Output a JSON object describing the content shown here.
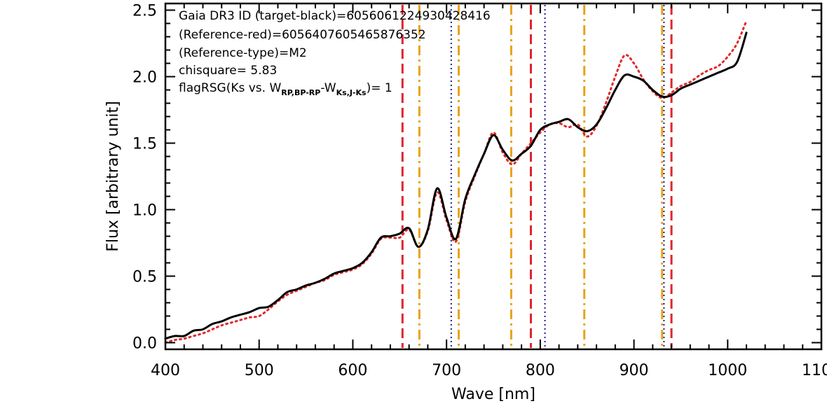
{
  "chart_data": {
    "type": "line",
    "xlabel": "Wave [nm]",
    "ylabel": "Flux [arbitrary unit]",
    "xlim": [
      400,
      1100
    ],
    "ylim": [
      -0.05,
      2.55
    ],
    "x_ticks": [
      400,
      500,
      600,
      700,
      800,
      900,
      1000,
      1100
    ],
    "x_tick_labels": [
      "400",
      "500",
      "600",
      "700",
      "800",
      "900",
      "1000",
      "1100"
    ],
    "y_ticks": [
      0.0,
      0.5,
      1.0,
      1.5,
      2.0,
      2.5
    ],
    "y_tick_labels": [
      "0.0",
      "0.5",
      "1.0",
      "1.5",
      "2.0",
      "2.5"
    ],
    "grid": false,
    "annotations": {
      "line1": "Gaia DR3 ID (target-black)=6056061224930428416",
      "line2": "(Reference-red)=6056407605465876352",
      "line3": "(Reference-type)=M2",
      "line4": "chisquare= 5.83",
      "line5_prefix": "flagRSG(Ks vs. W",
      "line5_sub1": "RP,BP-RP",
      "line5_mid": "-W",
      "line5_sub2": "Ks,J-Ks",
      "line5_suffix": ")= 1"
    },
    "series": [
      {
        "color": "#000000",
        "style": "solid",
        "x": [
          400,
          410,
          420,
          430,
          440,
          450,
          460,
          470,
          480,
          490,
          500,
          510,
          520,
          530,
          540,
          550,
          560,
          570,
          580,
          590,
          600,
          610,
          620,
          630,
          640,
          650,
          660,
          670,
          680,
          690,
          700,
          710,
          720,
          730,
          740,
          750,
          760,
          770,
          780,
          790,
          800,
          810,
          820,
          830,
          840,
          850,
          860,
          870,
          880,
          890,
          900,
          910,
          920,
          930,
          940,
          950,
          960,
          970,
          980,
          990,
          1000,
          1010,
          1020
        ],
        "y": [
          0.03,
          0.05,
          0.05,
          0.09,
          0.1,
          0.14,
          0.16,
          0.19,
          0.21,
          0.23,
          0.26,
          0.27,
          0.32,
          0.38,
          0.4,
          0.43,
          0.45,
          0.48,
          0.52,
          0.54,
          0.56,
          0.6,
          0.68,
          0.79,
          0.8,
          0.82,
          0.86,
          0.72,
          0.85,
          1.16,
          0.94,
          0.78,
          1.08,
          1.26,
          1.42,
          1.56,
          1.45,
          1.37,
          1.42,
          1.48,
          1.6,
          1.64,
          1.66,
          1.68,
          1.62,
          1.59,
          1.64,
          1.76,
          1.9,
          2.01,
          2.0,
          1.97,
          1.9,
          1.85,
          1.86,
          1.91,
          1.94,
          1.97,
          2.0,
          2.03,
          2.06,
          2.11,
          2.33
        ]
      },
      {
        "color": "#e02a2a",
        "style": "dotted",
        "x": [
          400,
          410,
          420,
          430,
          440,
          450,
          460,
          470,
          480,
          490,
          500,
          510,
          520,
          530,
          540,
          550,
          560,
          570,
          580,
          590,
          600,
          610,
          620,
          630,
          640,
          650,
          660,
          670,
          680,
          690,
          700,
          710,
          720,
          730,
          740,
          750,
          760,
          770,
          780,
          790,
          800,
          810,
          820,
          830,
          840,
          850,
          860,
          870,
          880,
          890,
          900,
          910,
          920,
          930,
          940,
          950,
          960,
          970,
          980,
          990,
          1000,
          1010,
          1020
        ],
        "y": [
          0.0,
          0.02,
          0.03,
          0.05,
          0.07,
          0.1,
          0.13,
          0.15,
          0.17,
          0.19,
          0.2,
          0.25,
          0.31,
          0.36,
          0.39,
          0.42,
          0.45,
          0.47,
          0.51,
          0.53,
          0.55,
          0.59,
          0.67,
          0.78,
          0.79,
          0.79,
          0.85,
          0.72,
          0.84,
          1.13,
          0.92,
          0.76,
          1.06,
          1.25,
          1.42,
          1.58,
          1.43,
          1.34,
          1.42,
          1.5,
          1.58,
          1.64,
          1.65,
          1.62,
          1.64,
          1.55,
          1.63,
          1.8,
          2.0,
          2.16,
          2.1,
          1.98,
          1.89,
          1.84,
          1.88,
          1.93,
          1.96,
          2.01,
          2.05,
          2.08,
          2.15,
          2.25,
          2.42
        ]
      }
    ],
    "vertical_lines": [
      {
        "x": 653,
        "color": "#e0242c",
        "style": "dashed"
      },
      {
        "x": 671,
        "color": "#e8a317",
        "style": "dashdot"
      },
      {
        "x": 705,
        "color": "#1c1c8c",
        "style": "dotted"
      },
      {
        "x": 713,
        "color": "#e8a317",
        "style": "dashdot"
      },
      {
        "x": 769,
        "color": "#e8a317",
        "style": "dashdot"
      },
      {
        "x": 790,
        "color": "#e0242c",
        "style": "dashed"
      },
      {
        "x": 805,
        "color": "#1c1c8c",
        "style": "dotted"
      },
      {
        "x": 847,
        "color": "#e8a317",
        "style": "dashdot"
      },
      {
        "x": 930,
        "color": "#e8a317",
        "style": "dashdot"
      },
      {
        "x": 932,
        "color": "#1c1c8c",
        "style": "dotted"
      },
      {
        "x": 940,
        "color": "#e0242c",
        "style": "dashed"
      }
    ]
  }
}
